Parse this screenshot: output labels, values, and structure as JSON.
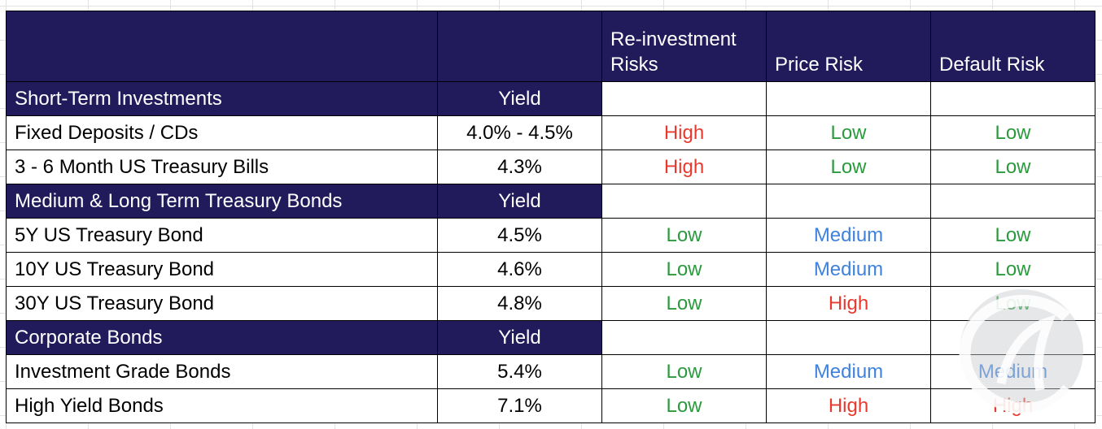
{
  "header": {
    "col_name": "",
    "col_yield": "",
    "col_reinvestment_line1": "Re-investment",
    "col_reinvestment_line2": "Risks",
    "col_price": "Price Risk",
    "col_default": "Default Risk"
  },
  "sections": [
    {
      "title": "Short-Term Investments",
      "yield_label": "Yield",
      "rows": [
        {
          "name": "Fixed Deposits / CDs",
          "yield": "4.0% - 4.5%",
          "reinvestment": "High",
          "price": "Low",
          "default": "Low"
        },
        {
          "name": "3 - 6 Month US Treasury Bills",
          "yield": "4.3%",
          "reinvestment": "High",
          "price": "Low",
          "default": "Low"
        }
      ]
    },
    {
      "title": "Medium & Long Term Treasury Bonds",
      "yield_label": "Yield",
      "rows": [
        {
          "name": "5Y US Treasury Bond",
          "yield": "4.5%",
          "reinvestment": "Low",
          "price": "Medium",
          "default": "Low"
        },
        {
          "name": "10Y US Treasury Bond",
          "yield": "4.6%",
          "reinvestment": "Low",
          "price": "Medium",
          "default": "Low"
        },
        {
          "name": "30Y US Treasury Bond",
          "yield": "4.8%",
          "reinvestment": "Low",
          "price": "High",
          "default": "Low"
        }
      ]
    },
    {
      "title": "Corporate Bonds",
      "yield_label": "Yield",
      "rows": [
        {
          "name": "Investment Grade Bonds",
          "yield": "5.4%",
          "reinvestment": "Low",
          "price": "Medium",
          "default": "Medium"
        },
        {
          "name": "High Yield Bonds",
          "yield": "7.1%",
          "reinvestment": "Low",
          "price": "High",
          "default": "High"
        }
      ]
    }
  ],
  "colors": {
    "header_bg": "#221b5b",
    "high": "#e8392f",
    "low": "#2b9a3e",
    "medium": "#3f82dd"
  },
  "watermark_icon": "logo-watermark-icon"
}
